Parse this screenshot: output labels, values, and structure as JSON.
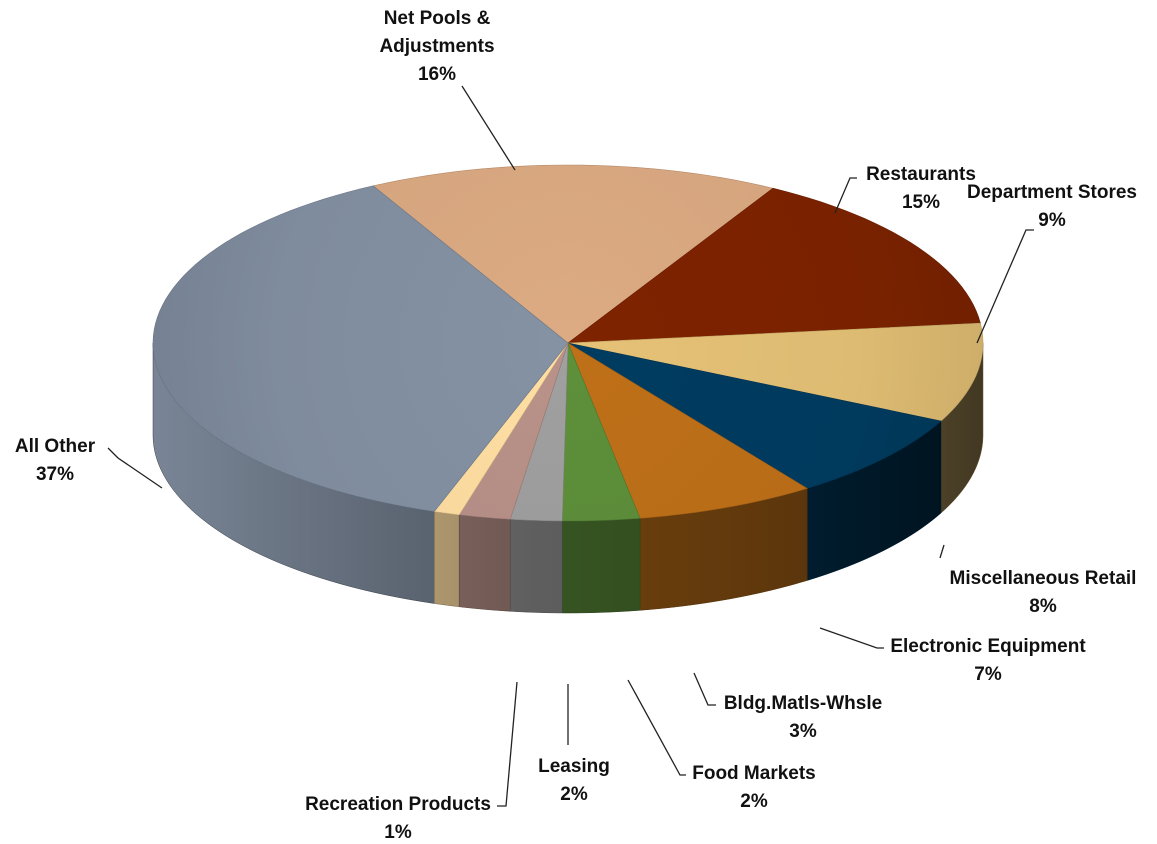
{
  "chart_data": {
    "type": "pie",
    "style": "3d-exploded-none",
    "title": "",
    "slices": [
      {
        "label": "Net Pools &\nAdjustments",
        "value": 16,
        "pct_label": "16%",
        "color": "#D4A47E"
      },
      {
        "label": "Restaurants",
        "value": 15,
        "pct_label": "15%",
        "color": "#7A2200"
      },
      {
        "label": "Department Stores",
        "value": 9,
        "pct_label": "9%",
        "color": "#DDBB72"
      },
      {
        "label": "Miscellaneous Retail",
        "value": 8,
        "pct_label": "8%",
        "color": "#003A5D"
      },
      {
        "label": "Electronic Equipment",
        "value": 7,
        "pct_label": "7%",
        "color": "#B86C17"
      },
      {
        "label": "Bldg.Matls-Whsle",
        "value": 3,
        "pct_label": "3%",
        "color": "#5A8A38"
      },
      {
        "label": "Food Markets",
        "value": 2,
        "pct_label": "2%",
        "color": "#9A9A9A"
      },
      {
        "label": "Leasing",
        "value": 2,
        "pct_label": "2%",
        "color": "#B28C84"
      },
      {
        "label": "Recreation Products",
        "value": 1,
        "pct_label": "1%",
        "color": "#F6D69C"
      },
      {
        "label": "All Other",
        "value": 37,
        "pct_label": "37%",
        "color": "#7F8C9E"
      }
    ]
  }
}
